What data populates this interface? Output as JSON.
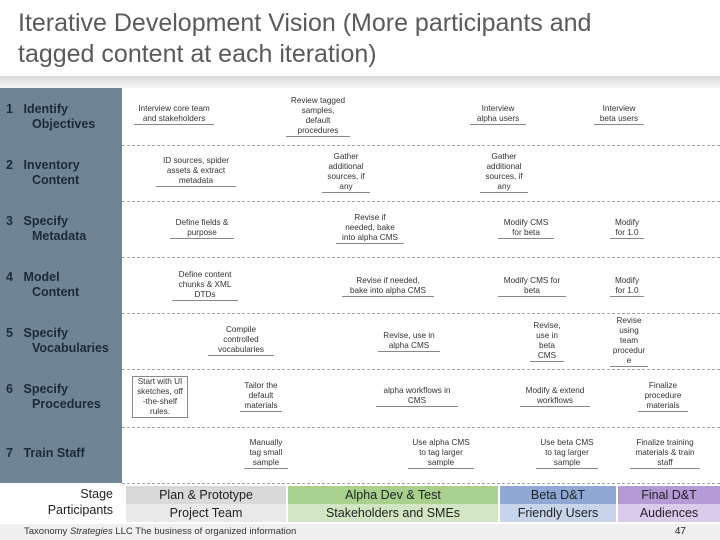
{
  "title": {
    "line1": "Iterative Development Vision (More participants and",
    "line2": "tagged content at each iteration)"
  },
  "rows": [
    {
      "num": "1",
      "label1": "Identify",
      "label2": "Objectives"
    },
    {
      "num": "2",
      "label1": "Inventory",
      "label2": "Content"
    },
    {
      "num": "3",
      "label1": "Specify",
      "label2": "Metadata"
    },
    {
      "num": "4",
      "label1": "Model",
      "label2": "Content"
    },
    {
      "num": "5",
      "label1": "Specify",
      "label2": "Vocabularies"
    },
    {
      "num": "6",
      "label1": "Specify",
      "label2": "Procedures"
    },
    {
      "num": "7",
      "label1": "Train Staff",
      "label2": ""
    }
  ],
  "tasks": {
    "r1": [
      "Interview core team\nand stakeholders",
      "Review tagged\nsamples,\ndefault\nprocedures",
      "Interview\nalpha users",
      "Interview\nbeta users"
    ],
    "r2": [
      "ID sources, spider\nassets & extract\nmetadata",
      "Gather\nadditional\nsources, if\nany",
      "Gather\nadditional\nsources, if\nany"
    ],
    "r3": [
      "Define fields &\npurpose",
      "Revise if\nneeded, bake\ninto alpha CMS",
      "Modify CMS\nfor beta",
      "Modify\nfor 1.0"
    ],
    "r4": [
      "Define content\nchunks & XML\nDTDs",
      "Revise if needed,\nbake into alpha CMS",
      "Modify CMS for\nbeta",
      "Modify\nfor 1.0"
    ],
    "r5": [
      "Compile\ncontrolled\nvocabularies",
      "Revise, use in\nalpha CMS",
      "Revise,\nuse in\nbeta\nCMS",
      "Revise\nusing\nteam\nprocedur\ne"
    ],
    "r6": [
      "Start with UI\nsketches, off\n-the-shelf\nrules.",
      "Tailor the\ndefault\nmaterials",
      "alpha workflows in\nCMS",
      "Modify & extend\nworkflows",
      "Finalize\nprocedure\nmaterials"
    ],
    "r7": [
      "Manually\ntag small\nsample",
      "Use alpha CMS\nto tag larger\nsample",
      "Use beta CMS\nto tag larger\nsample",
      "Finalize training\nmaterials & train\nstaff"
    ]
  },
  "legend": {
    "stage_label": "Stage",
    "participants_label": "Participants"
  },
  "stages": [
    {
      "name": "Plan & Prototype",
      "participants": "Project Team",
      "color": "#d9d9d9",
      "sub_color": "#e9e9e9"
    },
    {
      "name": "Alpha Dev & Test",
      "participants": "Stakeholders and SMEs",
      "color": "#a9d18e",
      "sub_color": "#d3e6c3"
    },
    {
      "name": "Beta D&T",
      "participants": "Friendly Users",
      "color": "#8fa9d6",
      "sub_color": "#c8d4ea"
    },
    {
      "name": "Final D&T",
      "participants": "Audiences",
      "color": "#b49ad6",
      "sub_color": "#d9cbeb"
    }
  ],
  "footer": {
    "company": "Taxonomy ",
    "company_italic": "Strategies",
    "suffix": " LLC   The business of organized information",
    "page": "47"
  }
}
